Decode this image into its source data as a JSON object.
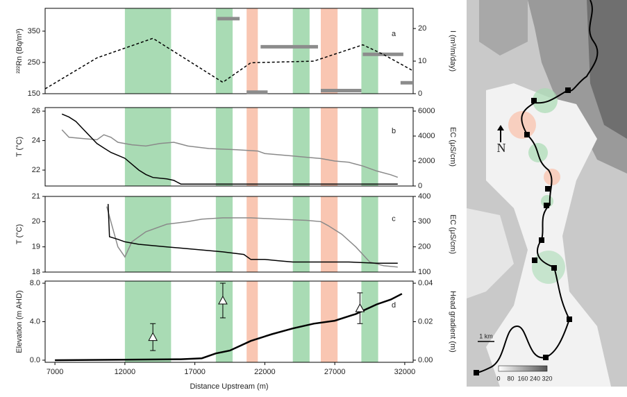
{
  "chart_data": [
    {
      "type": "line",
      "letter": "a",
      "ylabel": "²²²Rn (Bq/m³)",
      "y2label": "I (m³/m/day)",
      "xlim": [
        6300,
        32600
      ],
      "ylim": [
        150,
        423
      ],
      "yticks": [
        150,
        250,
        350
      ],
      "y2lim": [
        0,
        26.2
      ],
      "y2ticks": [
        0,
        10,
        20
      ],
      "bands": [
        {
          "x": [
            12000,
            15300
          ],
          "color": "#a9dbb4"
        },
        {
          "x": [
            18500,
            19700
          ],
          "color": "#a9dbb4"
        },
        {
          "x": [
            20700,
            21500
          ],
          "color": "#f9c6b2"
        },
        {
          "x": [
            24000,
            25200
          ],
          "color": "#a9dbb4"
        },
        {
          "x": [
            26000,
            27200
          ],
          "color": "#f9c6b2"
        },
        {
          "x": [
            28900,
            30100
          ],
          "color": "#a9dbb4"
        }
      ],
      "series": [
        {
          "style": "segments",
          "axis": "y",
          "color": "#8c8c8c",
          "x_start": [
            18600,
            20700,
            21700,
            26000,
            29000,
            31700
          ],
          "x_end": [
            20200,
            22200,
            25800,
            28900,
            31900,
            32600
          ],
          "values": [
            390,
            155,
            300,
            160,
            276,
            185
          ]
        },
        {
          "style": "line",
          "axis": "y2",
          "color": "#000000",
          "dash": true,
          "x": [
            6300,
            10000,
            14000,
            19000,
            21000,
            25500,
            29000,
            30500,
            32600
          ],
          "values": [
            1.5,
            11,
            17,
            3.5,
            9.5,
            10,
            15,
            12,
            7
          ]
        }
      ]
    },
    {
      "type": "line",
      "letter": "b",
      "ylabel": "T (°C)",
      "y2label": "EC (μS/cm)",
      "xlim": [
        6300,
        32600
      ],
      "ylim": [
        20.92,
        26.24
      ],
      "yticks": [
        22,
        24,
        26
      ],
      "y2lim": [
        0,
        6280
      ],
      "y2ticks": [
        0,
        2000,
        4000,
        6000
      ],
      "bands": [
        {
          "x": [
            12000,
            15300
          ],
          "color": "#a9dbb4"
        },
        {
          "x": [
            18500,
            19700
          ],
          "color": "#a9dbb4"
        },
        {
          "x": [
            20700,
            21500
          ],
          "color": "#f9c6b2"
        },
        {
          "x": [
            24000,
            25200
          ],
          "color": "#a9dbb4"
        },
        {
          "x": [
            26000,
            27200
          ],
          "color": "#f9c6b2"
        },
        {
          "x": [
            28900,
            30100
          ],
          "color": "#a9dbb4"
        }
      ],
      "series": [
        {
          "style": "line",
          "axis": "y2",
          "color": "#8a8a8a",
          "x": [
            7500,
            8000,
            9000,
            10000,
            10500,
            11000,
            11500,
            12500,
            13500,
            14500,
            15500,
            16500,
            18000,
            20000,
            21500,
            22000,
            24000,
            25000,
            26000,
            27000,
            28000,
            29000,
            30000,
            31000,
            31500
          ],
          "values": [
            4500,
            3900,
            3800,
            3700,
            4100,
            3900,
            3500,
            3300,
            3200,
            3400,
            3500,
            3200,
            3000,
            2900,
            2800,
            2600,
            2400,
            2300,
            2200,
            2000,
            1900,
            1600,
            1200,
            900,
            700
          ]
        },
        {
          "style": "line",
          "axis": "y",
          "color": "#000000",
          "x": [
            7500,
            8000,
            8500,
            9000,
            9500,
            10000,
            10500,
            11000,
            11500,
            12000,
            12500,
            13000,
            13500,
            14000,
            15000,
            15500,
            16000,
            20000,
            31500
          ],
          "values": [
            25.8,
            25.6,
            25.3,
            24.8,
            24.3,
            23.8,
            23.5,
            23.2,
            23.0,
            22.8,
            22.4,
            22.0,
            21.7,
            21.5,
            21.4,
            21.3,
            21.05,
            21.05,
            21.05
          ]
        }
      ]
    },
    {
      "type": "line",
      "letter": "c",
      "ylabel": "T (°C)",
      "y2label": "EC (μS/cm)",
      "xlim": [
        6300,
        32600
      ],
      "ylim": [
        18,
        21
      ],
      "yticks": [
        18,
        19,
        20,
        21
      ],
      "y2lim": [
        100,
        400
      ],
      "y2ticks": [
        100,
        200,
        300,
        400
      ],
      "bands": [
        {
          "x": [
            12000,
            15300
          ],
          "color": "#a9dbb4"
        },
        {
          "x": [
            18500,
            19700
          ],
          "color": "#a9dbb4"
        },
        {
          "x": [
            20700,
            21500
          ],
          "color": "#f9c6b2"
        },
        {
          "x": [
            24000,
            25200
          ],
          "color": "#a9dbb4"
        },
        {
          "x": [
            26000,
            27200
          ],
          "color": "#f9c6b2"
        },
        {
          "x": [
            28900,
            30100
          ],
          "color": "#a9dbb4"
        }
      ],
      "series": [
        {
          "style": "line",
          "axis": "y2",
          "color": "#8a8a8a",
          "x": [
            10700,
            11000,
            11500,
            12000,
            12500,
            13500,
            15000,
            16500,
            17500,
            19000,
            21000,
            23000,
            25000,
            26000,
            26500,
            27500,
            28500,
            29500,
            30500,
            31500
          ],
          "values": [
            360,
            300,
            200,
            160,
            220,
            260,
            290,
            300,
            310,
            315,
            315,
            310,
            305,
            300,
            285,
            250,
            200,
            140,
            125,
            120
          ]
        },
        {
          "style": "line",
          "axis": "y",
          "color": "#000000",
          "x": [
            10800,
            10900,
            11500,
            12000,
            13000,
            15000,
            17000,
            19000,
            20500,
            21000,
            22000,
            23000,
            24000,
            26000,
            28000,
            30000,
            31500
          ],
          "values": [
            20.7,
            19.4,
            19.3,
            19.2,
            19.1,
            19.0,
            18.9,
            18.8,
            18.7,
            18.5,
            18.5,
            18.45,
            18.4,
            18.4,
            18.4,
            18.35,
            18.35
          ]
        }
      ]
    },
    {
      "type": "line",
      "letter": "d",
      "ylabel": "Elevation (m AHD)",
      "y2label": "Head gradient (m)",
      "xlabel": "Distance Upstream (m)",
      "xlim": [
        6300,
        32600
      ],
      "xticks": [
        7000,
        12000,
        17000,
        22000,
        27000,
        32000
      ],
      "ylim": [
        -0.22,
        8.22
      ],
      "yticks": [
        {
          "value": 0,
          "label": "0.0"
        },
        {
          "value": 4,
          "label": "4.0"
        },
        {
          "value": 8,
          "label": "8.0"
        }
      ],
      "y2lim": [
        -0.0011,
        0.0411
      ],
      "y2ticks": [
        {
          "value": 0,
          "label": "0.00"
        },
        {
          "value": 0.02,
          "label": "0.02"
        },
        {
          "value": 0.04,
          "label": "0.04"
        }
      ],
      "bands": [
        {
          "x": [
            12000,
            15300
          ],
          "color": "#a9dbb4"
        },
        {
          "x": [
            18500,
            19700
          ],
          "color": "#a9dbb4"
        },
        {
          "x": [
            20700,
            21500
          ],
          "color": "#f9c6b2"
        },
        {
          "x": [
            24000,
            25200
          ],
          "color": "#a9dbb4"
        },
        {
          "x": [
            26000,
            27200
          ],
          "color": "#f9c6b2"
        },
        {
          "x": [
            28900,
            30100
          ],
          "color": "#a9dbb4"
        }
      ],
      "series": [
        {
          "style": "line",
          "axis": "y",
          "color": "#000000",
          "width": 2.5,
          "x": [
            7000,
            12000,
            16000,
            17500,
            18500,
            19500,
            21000,
            22500,
            24000,
            25500,
            27000,
            28500,
            30000,
            31000,
            31800
          ],
          "values": [
            0,
            0.05,
            0.1,
            0.2,
            0.7,
            1.0,
            2.0,
            2.7,
            3.3,
            3.8,
            4.1,
            4.8,
            5.8,
            6.3,
            6.9
          ]
        },
        {
          "style": "markers",
          "axis": "y2",
          "color": "#000000",
          "x": [
            14000,
            19000,
            28800
          ],
          "values": [
            0.012,
            0.031,
            0.027
          ],
          "errors": [
            0.007,
            0.009,
            0.008
          ]
        }
      ]
    }
  ],
  "map": {
    "north_label": "N",
    "scale_label": "1 km",
    "legend_labels": [
      0,
      80,
      160,
      240,
      320
    ]
  }
}
